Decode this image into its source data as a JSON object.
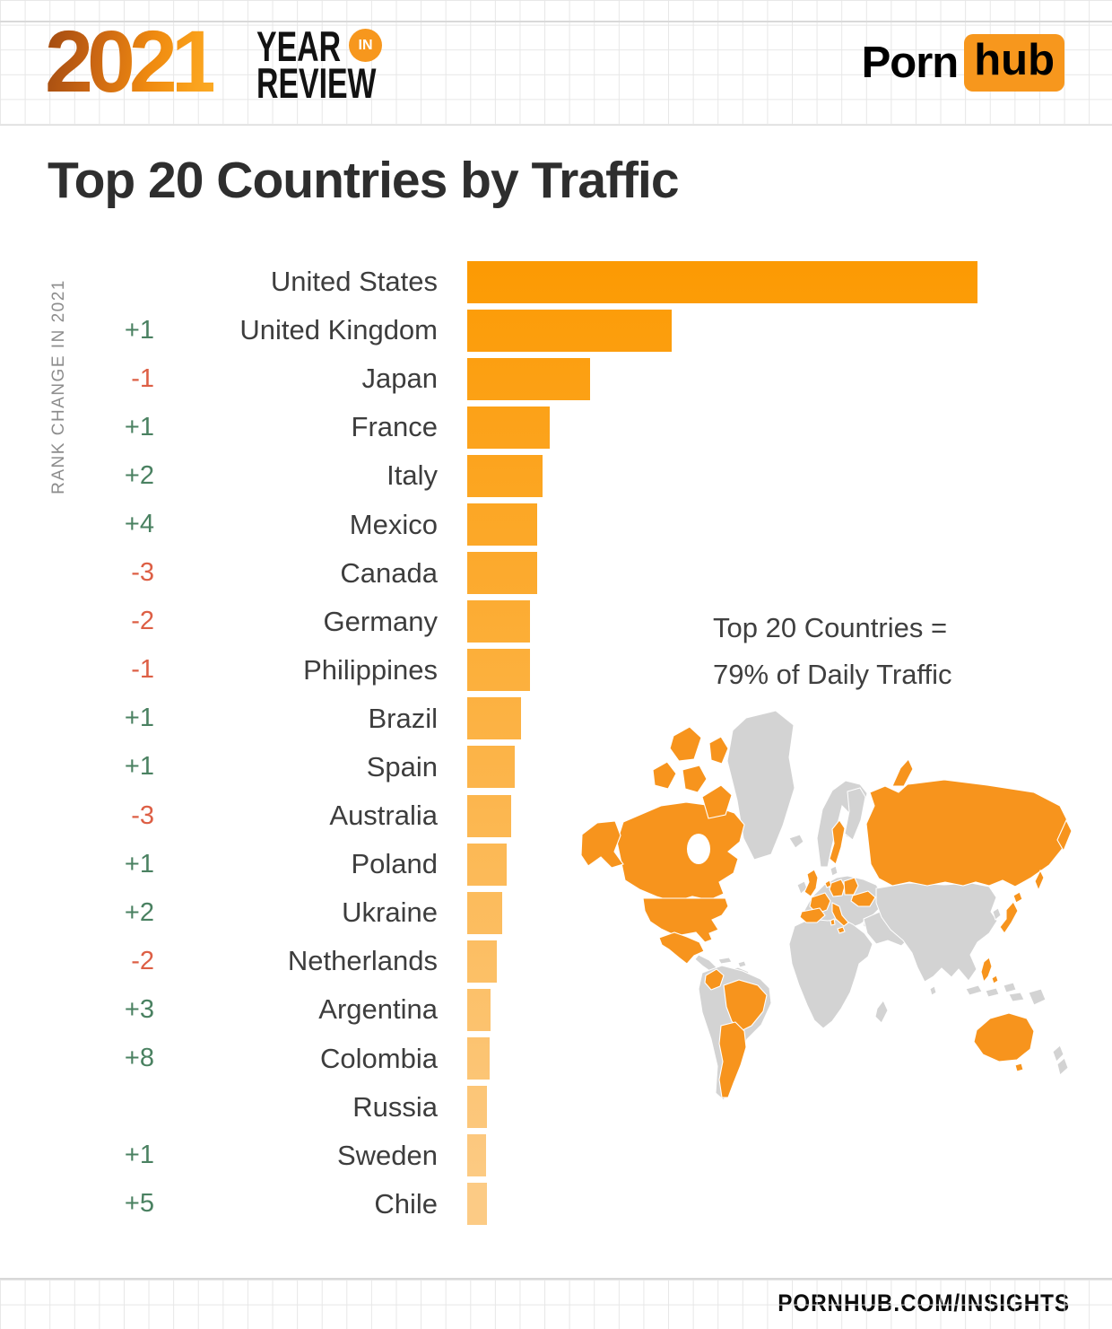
{
  "header": {
    "logo_year": "2021",
    "logo_line1": "YEAR",
    "logo_badge": "IN",
    "logo_line2": "REVIEW",
    "brand_porn": "Porn",
    "brand_hub": "hub"
  },
  "title": "Top 20 Countries by Traffic",
  "footer": "PORNHUB.COM/INSIGHTS",
  "chart_data": {
    "type": "bar",
    "orientation": "horizontal",
    "title": "Top 20 Countries by Traffic",
    "axis_left_label": "RANK CHANGE IN 2021",
    "annotation_line1": "Top 20 Countries =",
    "annotation_line2": "79% of Daily Traffic",
    "categories": [
      "United States",
      "United Kingdom",
      "Japan",
      "France",
      "Italy",
      "Mexico",
      "Canada",
      "Germany",
      "Philippines",
      "Brazil",
      "Spain",
      "Australia",
      "Poland",
      "Ukraine",
      "Netherlands",
      "Argentina",
      "Colombia",
      "Russia",
      "Sweden",
      "Chile"
    ],
    "rank_changes": [
      "",
      "+1",
      "-1",
      "+1",
      "+2",
      "+4",
      "-3",
      "-2",
      "-1",
      "+1",
      "+1",
      "-3",
      "+1",
      "+2",
      "-2",
      "+3",
      "+8",
      "",
      "+1",
      "+5"
    ],
    "values": [
      569,
      228,
      137,
      92,
      84,
      78,
      78,
      70,
      70,
      60,
      53,
      49,
      44,
      39,
      33,
      26,
      25,
      22,
      21,
      22
    ],
    "value_basis": "relative bar length in screen px (no numeric axis shown in the infographic)",
    "grid": false,
    "legend": "none",
    "colors": {
      "bar_top": "#FC9A03",
      "bar_bottom": "#FCCB85",
      "rank_up": "#4A8161",
      "rank_down": "#DD5F45"
    }
  },
  "map": {
    "highlighted_color": "#F7941D",
    "base_color": "#D3D3D3",
    "highlighted_countries": [
      "Canada",
      "United States",
      "Mexico",
      "Colombia",
      "Brazil",
      "Argentina",
      "Chile",
      "United Kingdom",
      "France",
      "Spain",
      "Italy",
      "Netherlands",
      "Germany",
      "Poland",
      "Ukraine",
      "Sweden",
      "Russia",
      "Japan",
      "Philippines",
      "Australia"
    ]
  },
  "theme": {
    "accent": "#F7971D"
  }
}
